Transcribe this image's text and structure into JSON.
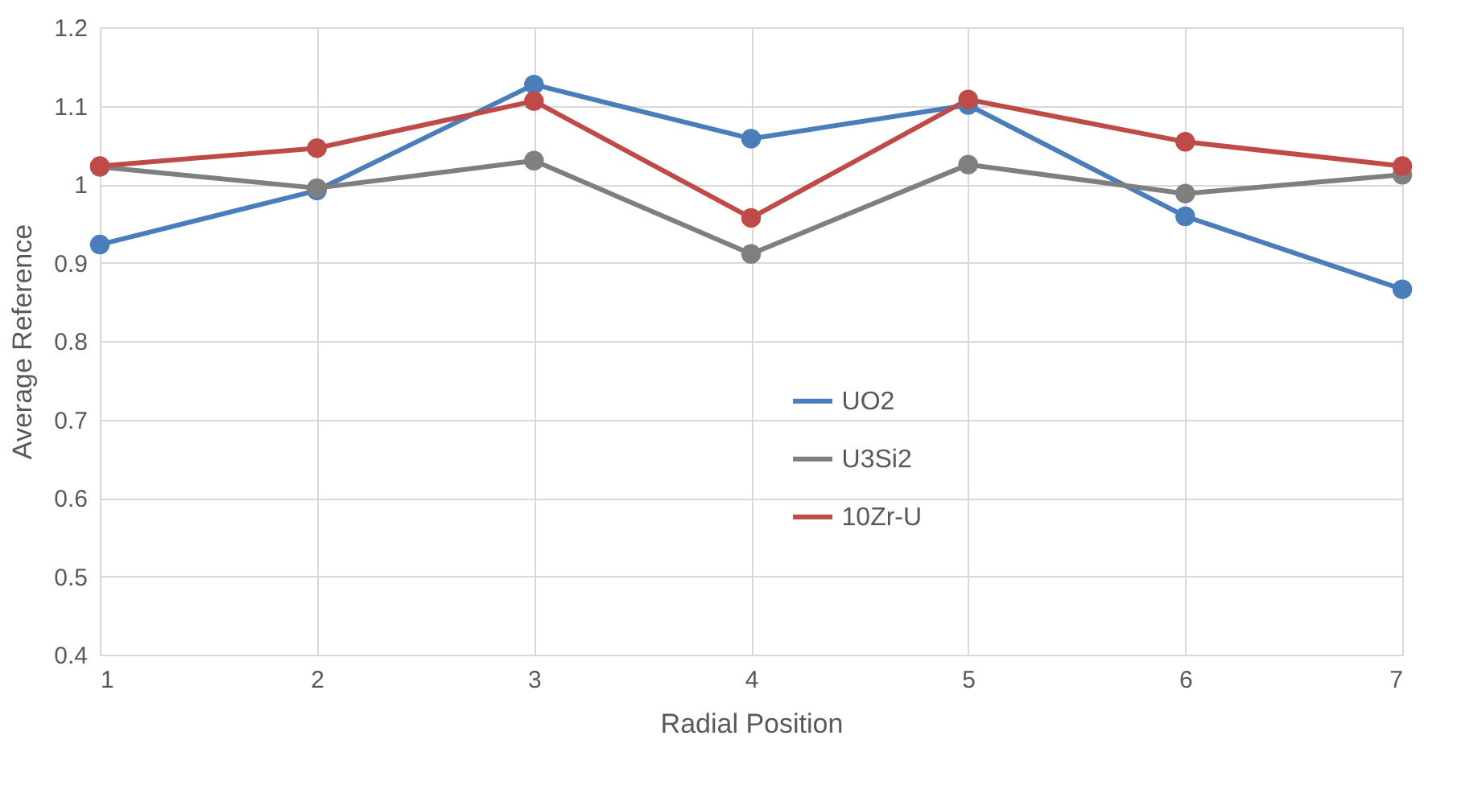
{
  "chart_data": {
    "type": "line",
    "xlabel": "Radial Position",
    "ylabel": "Average Reference",
    "x": [
      1,
      2,
      3,
      4,
      5,
      6,
      7
    ],
    "series": [
      {
        "name": "UO2",
        "color": "#4a7ebb",
        "values": [
          0.923,
          0.992,
          1.127,
          1.058,
          1.101,
          0.959,
          0.866
        ]
      },
      {
        "name": "U3Si2",
        "color": "#7f7f7f",
        "values": [
          1.022,
          0.995,
          1.03,
          0.911,
          1.025,
          0.988,
          1.012
        ]
      },
      {
        "name": "10Zr-U",
        "color": "#be4b48",
        "values": [
          1.023,
          1.046,
          1.106,
          0.957,
          1.108,
          1.054,
          1.023
        ]
      }
    ],
    "xlim": [
      1,
      7
    ],
    "xticks": [
      1,
      2,
      3,
      4,
      5,
      6,
      7
    ],
    "ylim": [
      0.4,
      1.2
    ],
    "yticks": [
      0.4,
      0.5,
      0.6,
      0.7,
      0.8,
      0.9,
      1,
      1.1,
      1.2
    ],
    "grid": true,
    "legend": "center",
    "marker": "circle",
    "line_style": "solid"
  }
}
